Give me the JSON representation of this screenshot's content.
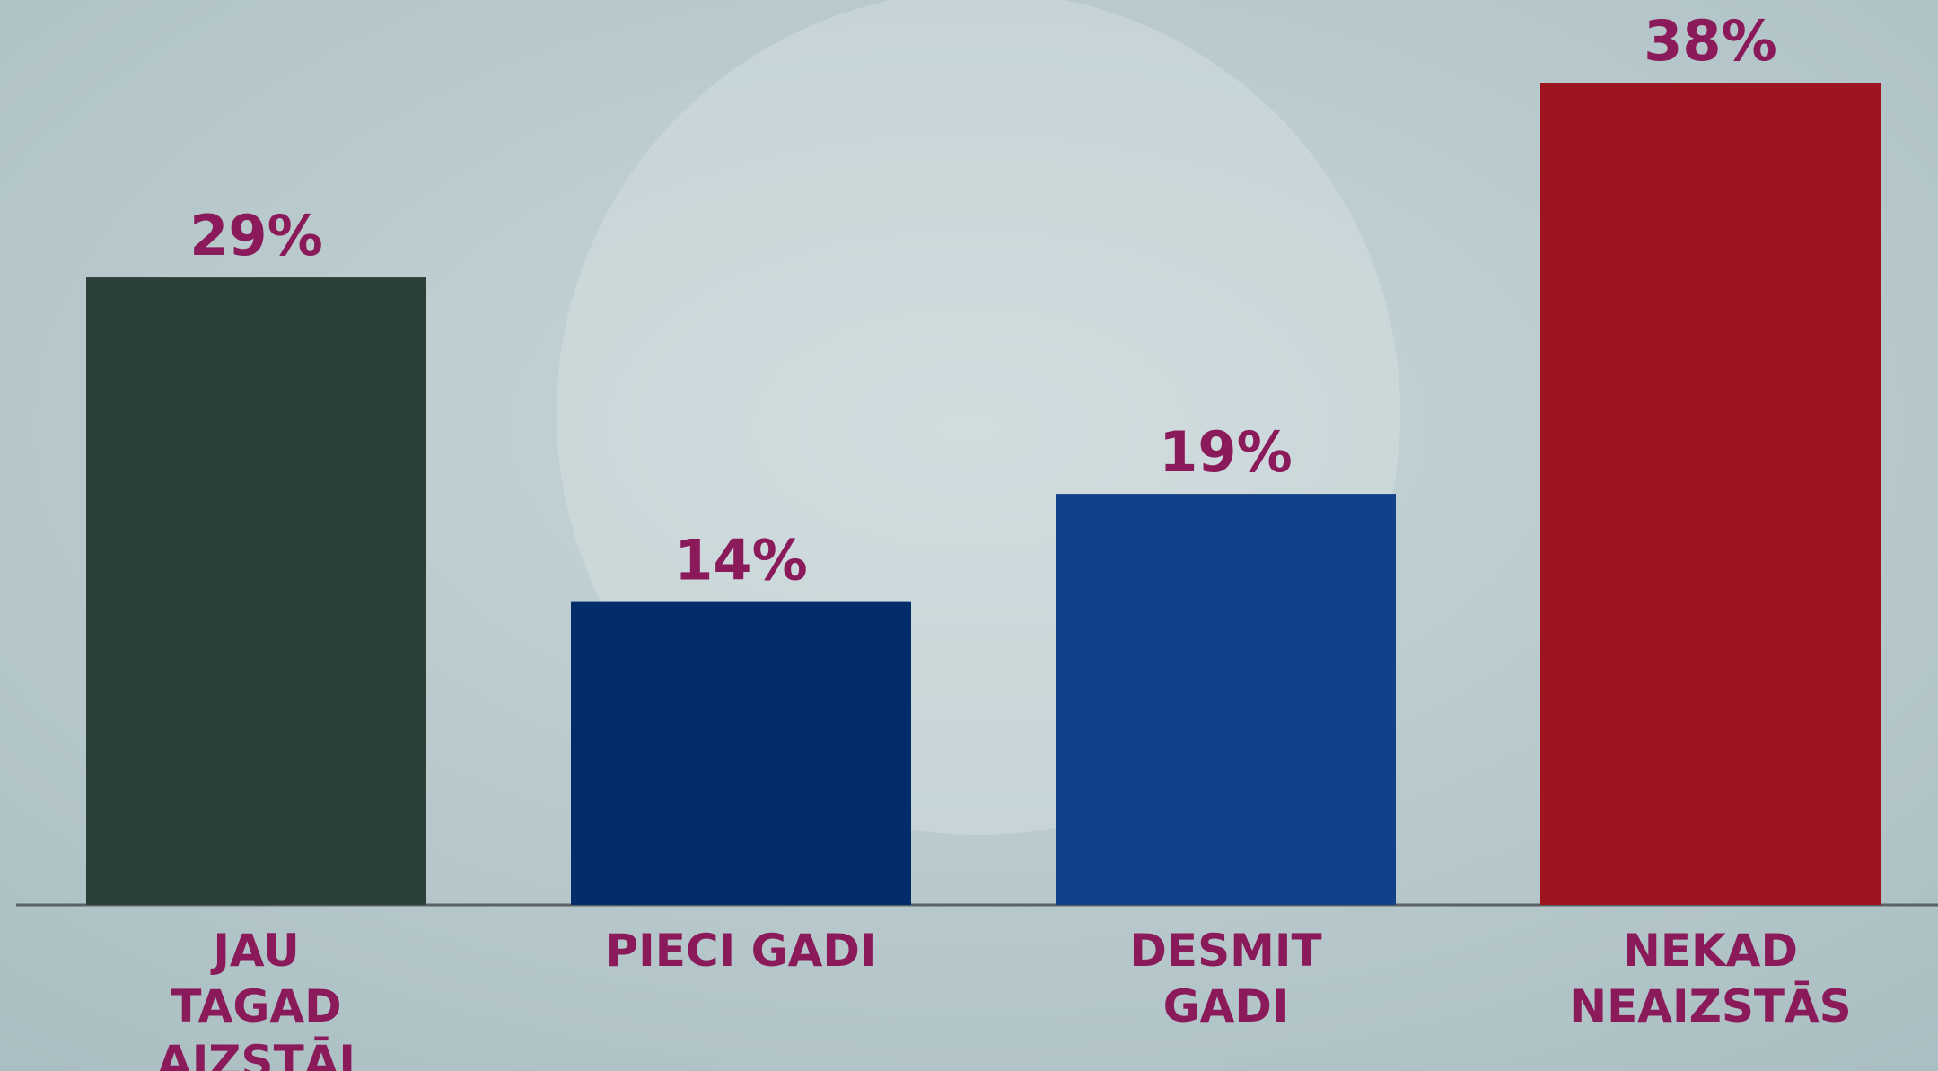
{
  "chart_data": {
    "type": "bar",
    "categories": [
      "JAU\nTAGAD\nAIZSTĀJ",
      "PIECI GADI",
      "DESMIT\nGADI",
      "NEKAD\nNEAIZSTĀS"
    ],
    "values": [
      29,
      14,
      19,
      38
    ],
    "value_labels": [
      "29%",
      "14%",
      "19%",
      "38%"
    ],
    "colors": [
      "#2b4039",
      "#032c6a",
      "#12418a",
      "#9e1520"
    ]
  }
}
